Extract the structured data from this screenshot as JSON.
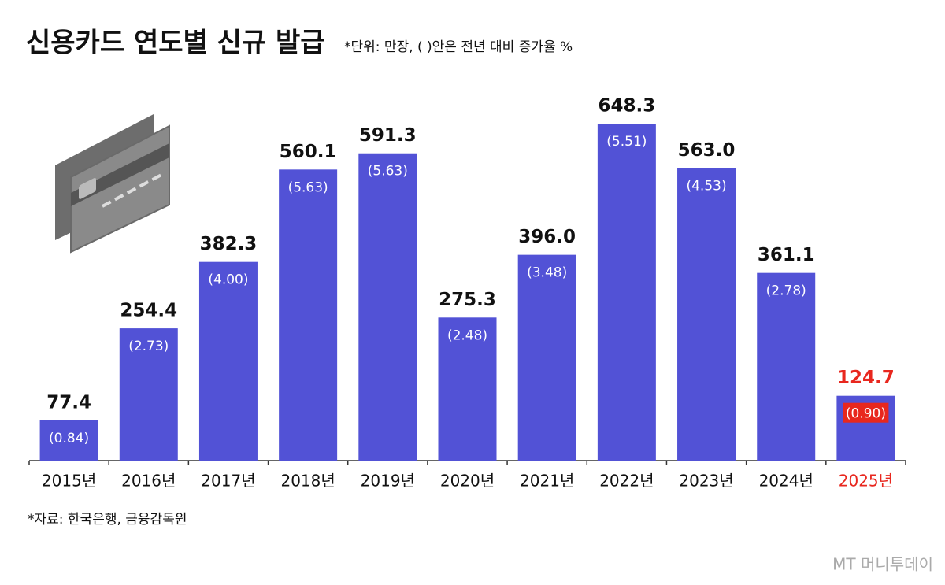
{
  "chart_data": {
    "type": "bar",
    "title": "신용카드 연도별 신규 발급",
    "subtitle": "*단위: 만장, ( )안은 전년 대비 증가율 %",
    "source": "*자료: 한국은행, 금융감독원",
    "watermark": "MT 머니투데이",
    "categories": [
      "2015년",
      "2016년",
      "2017년",
      "2018년",
      "2019년",
      "2020년",
      "2021년",
      "2022년",
      "2023년",
      "2024년",
      "2025년"
    ],
    "values": [
      77.4,
      254.4,
      382.3,
      560.1,
      591.3,
      275.3,
      396.0,
      648.3,
      563.0,
      361.1,
      124.7
    ],
    "value_labels": [
      "77.4",
      "254.4",
      "382.3",
      "560.1",
      "591.3",
      "275.3",
      "396.0",
      "648.3",
      "563.0",
      "361.1",
      "124.7"
    ],
    "rate_labels": [
      "(0.84)",
      "(2.73)",
      "(4.00)",
      "(5.63)",
      "(5.63)",
      "(2.48)",
      "(3.48)",
      "(5.51)",
      "(4.53)",
      "(2.78)",
      "(0.90)"
    ],
    "color": "#5252d6",
    "label_colors": [
      "#111111",
      "#111111",
      "#111111",
      "#111111",
      "#111111",
      "#111111",
      "#111111",
      "#111111",
      "#111111",
      "#111111",
      "#e8271e"
    ],
    "ylim": [
      0,
      700
    ]
  }
}
